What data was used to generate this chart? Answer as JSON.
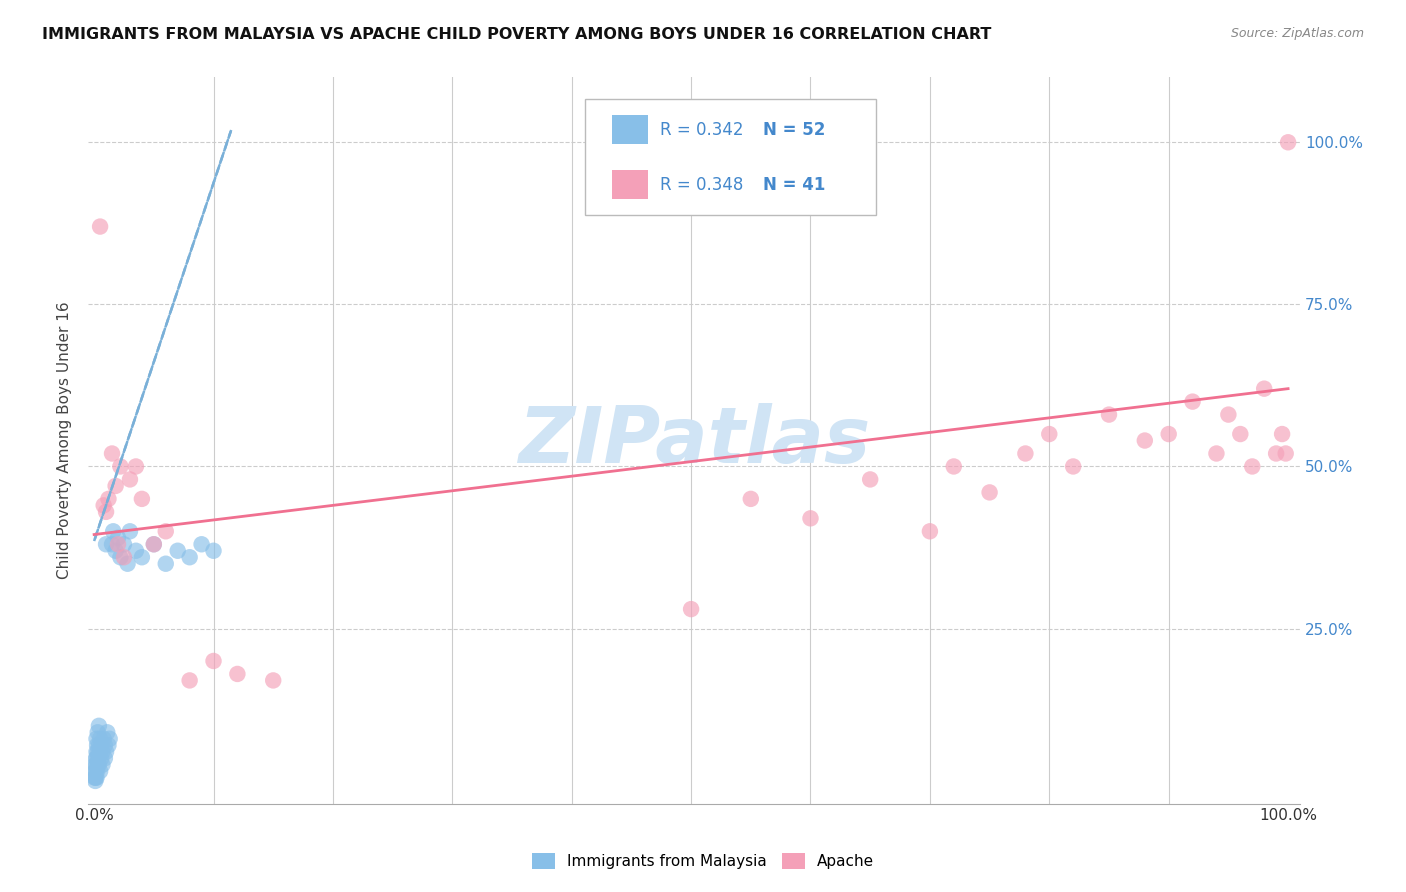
{
  "title": "IMMIGRANTS FROM MALAYSIA VS APACHE CHILD POVERTY AMONG BOYS UNDER 16 CORRELATION CHART",
  "source": "Source: ZipAtlas.com",
  "ylabel": "Child Poverty Among Boys Under 16",
  "legend_label1": "Immigrants from Malaysia",
  "legend_label2": "Apache",
  "R1": "0.342",
  "N1": "52",
  "R2": "0.348",
  "N2": "41",
  "color_blue": "#88bfe8",
  "color_pink": "#f4a0b8",
  "color_blue_line": "#7ab0d8",
  "color_pink_line": "#f07090",
  "color_blue_text": "#4488cc",
  "background_color": "#ffffff",
  "watermark_text": "ZIPatlas",
  "watermark_color": "#d0e4f5",
  "blue_points_x": [
    0.0005,
    0.0008,
    0.001,
    0.001,
    0.0012,
    0.0015,
    0.0015,
    0.0018,
    0.002,
    0.002,
    0.002,
    0.0022,
    0.0025,
    0.0025,
    0.003,
    0.003,
    0.003,
    0.0035,
    0.004,
    0.004,
    0.004,
    0.005,
    0.005,
    0.005,
    0.006,
    0.006,
    0.007,
    0.007,
    0.008,
    0.009,
    0.009,
    0.01,
    0.01,
    0.011,
    0.012,
    0.013,
    0.015,
    0.016,
    0.018,
    0.02,
    0.022,
    0.025,
    0.028,
    0.03,
    0.035,
    0.04,
    0.05,
    0.06,
    0.07,
    0.08,
    0.09,
    0.1
  ],
  "blue_points_y": [
    0.02,
    0.03,
    0.015,
    0.04,
    0.02,
    0.05,
    0.03,
    0.04,
    0.06,
    0.02,
    0.08,
    0.05,
    0.07,
    0.03,
    0.06,
    0.04,
    0.09,
    0.05,
    0.07,
    0.04,
    0.1,
    0.06,
    0.03,
    0.08,
    0.05,
    0.07,
    0.06,
    0.04,
    0.08,
    0.05,
    0.07,
    0.06,
    0.38,
    0.09,
    0.07,
    0.08,
    0.38,
    0.4,
    0.37,
    0.39,
    0.36,
    0.38,
    0.35,
    0.4,
    0.37,
    0.36,
    0.38,
    0.35,
    0.37,
    0.36,
    0.38,
    0.37
  ],
  "pink_points_x": [
    0.005,
    0.008,
    0.01,
    0.012,
    0.015,
    0.018,
    0.02,
    0.022,
    0.025,
    0.03,
    0.035,
    0.04,
    0.05,
    0.06,
    0.08,
    0.1,
    0.12,
    0.15,
    0.5,
    0.55,
    0.6,
    0.65,
    0.7,
    0.72,
    0.75,
    0.78,
    0.8,
    0.82,
    0.85,
    0.88,
    0.9,
    0.92,
    0.94,
    0.95,
    0.96,
    0.97,
    0.98,
    0.99,
    0.995,
    0.998,
    1.0
  ],
  "pink_points_y": [
    0.87,
    0.44,
    0.43,
    0.45,
    0.52,
    0.47,
    0.38,
    0.5,
    0.36,
    0.48,
    0.5,
    0.45,
    0.38,
    0.4,
    0.17,
    0.2,
    0.18,
    0.17,
    0.28,
    0.45,
    0.42,
    0.48,
    0.4,
    0.5,
    0.46,
    0.52,
    0.55,
    0.5,
    0.58,
    0.54,
    0.55,
    0.6,
    0.52,
    0.58,
    0.55,
    0.5,
    0.62,
    0.52,
    0.55,
    0.52,
    1.0
  ],
  "blue_trend_x0": 0.0,
  "blue_trend_x1": 0.115,
  "blue_trend_y0": 0.385,
  "blue_trend_y1": 1.02,
  "pink_trend_x0": 0.0,
  "pink_trend_x1": 1.0,
  "pink_trend_y0": 0.395,
  "pink_trend_y1": 0.62,
  "xlim": [
    -0.005,
    1.01
  ],
  "ylim": [
    -0.02,
    1.1
  ],
  "x_minor_ticks": [
    0.1,
    0.2,
    0.3,
    0.4,
    0.5,
    0.6,
    0.7,
    0.8,
    0.9
  ],
  "y_ticks": [
    0.25,
    0.5,
    0.75,
    1.0
  ],
  "y_tick_labels": [
    "25.0%",
    "50.0%",
    "75.0%",
    "100.0%"
  ]
}
